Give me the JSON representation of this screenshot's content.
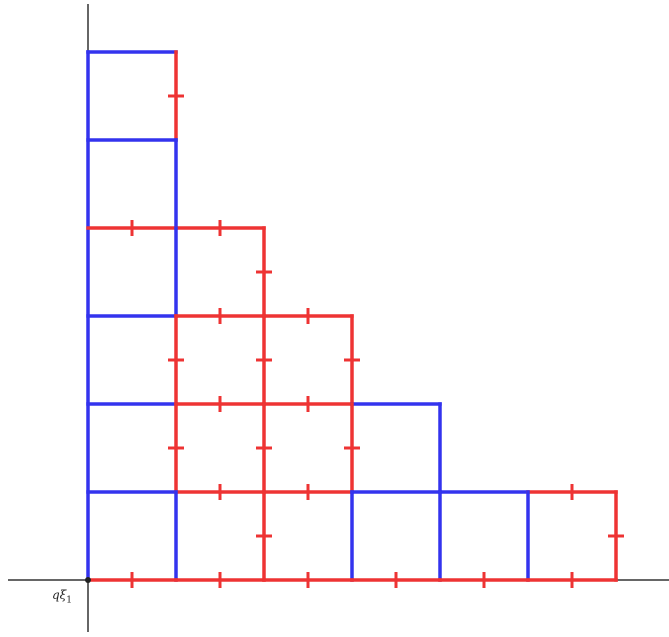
{
  "origin_label": {
    "main": "qξ",
    "sub": "1"
  },
  "colors": {
    "axis": "#333333",
    "blue": "#3333ee",
    "red": "#ee3333",
    "origin_dot": "#222222"
  },
  "diagram": {
    "grid_unit": 1,
    "segments": [
      {
        "from": [
          0,
          0
        ],
        "to": [
          0,
          6
        ],
        "color": "blue",
        "tick": false
      },
      {
        "from": [
          0,
          6
        ],
        "to": [
          1,
          6
        ],
        "color": "blue",
        "tick": false
      },
      {
        "from": [
          1,
          6
        ],
        "to": [
          1,
          5
        ],
        "color": "red",
        "tick": true
      },
      {
        "from": [
          0,
          5
        ],
        "to": [
          1,
          5
        ],
        "color": "blue",
        "tick": false
      },
      {
        "from": [
          1,
          5
        ],
        "to": [
          1,
          4
        ],
        "color": "blue",
        "tick": false
      },
      {
        "from": [
          0,
          4
        ],
        "to": [
          1,
          4
        ],
        "color": "red",
        "tick": true
      },
      {
        "from": [
          1,
          4
        ],
        "to": [
          2,
          4
        ],
        "color": "red",
        "tick": true
      },
      {
        "from": [
          2,
          4
        ],
        "to": [
          2,
          3
        ],
        "color": "red",
        "tick": true
      },
      {
        "from": [
          0,
          3
        ],
        "to": [
          1,
          3
        ],
        "color": "blue",
        "tick": false
      },
      {
        "from": [
          1,
          4
        ],
        "to": [
          1,
          3
        ],
        "color": "blue",
        "tick": false
      },
      {
        "from": [
          1,
          3
        ],
        "to": [
          2,
          3
        ],
        "color": "red",
        "tick": true
      },
      {
        "from": [
          2,
          3
        ],
        "to": [
          3,
          3
        ],
        "color": "red",
        "tick": true
      },
      {
        "from": [
          3,
          3
        ],
        "to": [
          3,
          2
        ],
        "color": "red",
        "tick": true
      },
      {
        "from": [
          1,
          3
        ],
        "to": [
          1,
          2
        ],
        "color": "red",
        "tick": true
      },
      {
        "from": [
          2,
          3
        ],
        "to": [
          2,
          2
        ],
        "color": "red",
        "tick": true
      },
      {
        "from": [
          0,
          2
        ],
        "to": [
          1,
          2
        ],
        "color": "blue",
        "tick": false
      },
      {
        "from": [
          1,
          2
        ],
        "to": [
          2,
          2
        ],
        "color": "red",
        "tick": true
      },
      {
        "from": [
          2,
          2
        ],
        "to": [
          3,
          2
        ],
        "color": "red",
        "tick": true
      },
      {
        "from": [
          3,
          2
        ],
        "to": [
          4,
          2
        ],
        "color": "blue",
        "tick": false
      },
      {
        "from": [
          4,
          2
        ],
        "to": [
          4,
          1
        ],
        "color": "blue",
        "tick": false
      },
      {
        "from": [
          1,
          2
        ],
        "to": [
          1,
          1
        ],
        "color": "red",
        "tick": true
      },
      {
        "from": [
          2,
          2
        ],
        "to": [
          2,
          1
        ],
        "color": "red",
        "tick": true
      },
      {
        "from": [
          3,
          2
        ],
        "to": [
          3,
          1
        ],
        "color": "red",
        "tick": true
      },
      {
        "from": [
          0,
          1
        ],
        "to": [
          1,
          1
        ],
        "color": "blue",
        "tick": false
      },
      {
        "from": [
          1,
          1
        ],
        "to": [
          2,
          1
        ],
        "color": "red",
        "tick": true
      },
      {
        "from": [
          2,
          1
        ],
        "to": [
          3,
          1
        ],
        "color": "red",
        "tick": true
      },
      {
        "from": [
          3,
          1
        ],
        "to": [
          4,
          1
        ],
        "color": "blue",
        "tick": false
      },
      {
        "from": [
          4,
          1
        ],
        "to": [
          5,
          1
        ],
        "color": "blue",
        "tick": false
      },
      {
        "from": [
          5,
          1
        ],
        "to": [
          6,
          1
        ],
        "color": "red",
        "tick": true
      },
      {
        "from": [
          6,
          1
        ],
        "to": [
          6,
          0
        ],
        "color": "red",
        "tick": true
      },
      {
        "from": [
          1,
          1
        ],
        "to": [
          1,
          0
        ],
        "color": "blue",
        "tick": false
      },
      {
        "from": [
          2,
          1
        ],
        "to": [
          2,
          0
        ],
        "color": "red",
        "tick": true
      },
      {
        "from": [
          3,
          1
        ],
        "to": [
          3,
          0
        ],
        "color": "blue",
        "tick": false
      },
      {
        "from": [
          4,
          1
        ],
        "to": [
          4,
          0
        ],
        "color": "blue",
        "tick": false
      },
      {
        "from": [
          5,
          1
        ],
        "to": [
          5,
          0
        ],
        "color": "blue",
        "tick": false
      },
      {
        "from": [
          0,
          0
        ],
        "to": [
          1,
          0
        ],
        "color": "red",
        "tick": true
      },
      {
        "from": [
          1,
          0
        ],
        "to": [
          2,
          0
        ],
        "color": "red",
        "tick": true
      },
      {
        "from": [
          2,
          0
        ],
        "to": [
          3,
          0
        ],
        "color": "red",
        "tick": true
      },
      {
        "from": [
          3,
          0
        ],
        "to": [
          4,
          0
        ],
        "color": "red",
        "tick": true
      },
      {
        "from": [
          4,
          0
        ],
        "to": [
          5,
          0
        ],
        "color": "red",
        "tick": true
      },
      {
        "from": [
          5,
          0
        ],
        "to": [
          6,
          0
        ],
        "color": "red",
        "tick": true
      }
    ]
  }
}
